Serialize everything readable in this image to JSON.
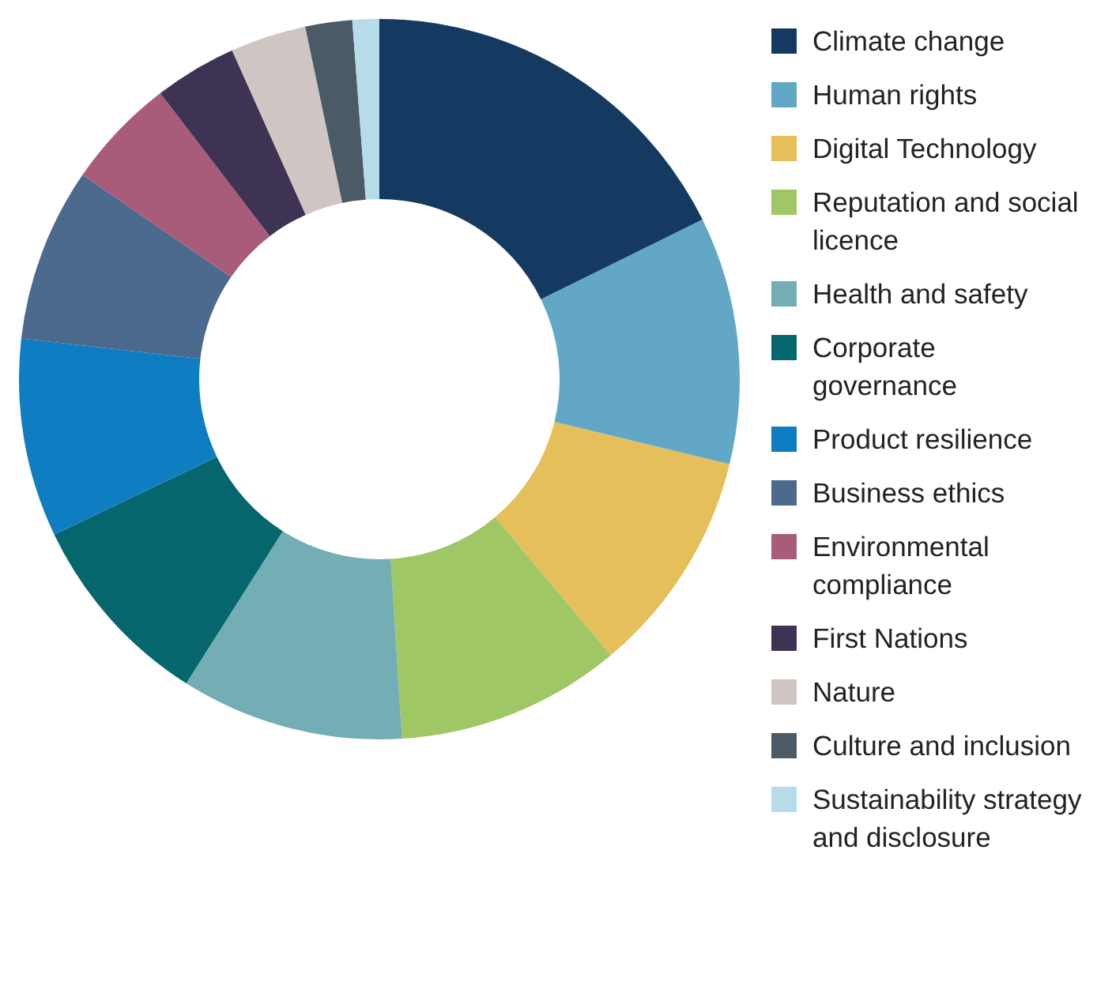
{
  "chart_data": {
    "type": "donut",
    "categories": [
      "Climate change",
      "Human rights",
      "Digital Technology",
      "Reputation and social licence",
      "Health and safety",
      "Corporate governance",
      "Product resilience",
      "Business ethics",
      "Environmental compliance",
      "First Nations",
      "Nature",
      "Culture and inclusion",
      "Sustainability strategy and disclosure"
    ],
    "values": [
      17.7,
      11.1,
      10.1,
      10.1,
      10,
      8.9,
      8.9,
      7.8,
      5,
      3.7,
      3.4,
      2.1,
      1.2
    ],
    "colors": [
      "#143a62",
      "#62a8c6",
      "#e4bf5a",
      "#a0c765",
      "#72aeb4",
      "#05666e",
      "#0f7dc2",
      "#4c6a8e",
      "#a85c7a",
      "#3f3353",
      "#cfc5c2",
      "#4a5a67",
      "#b5dce8"
    ],
    "legend": "right"
  }
}
